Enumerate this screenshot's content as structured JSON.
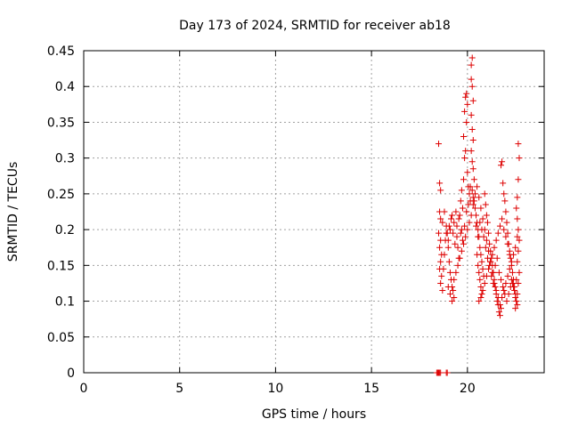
{
  "chart_data": {
    "type": "scatter",
    "title": "Day 173 of 2024, SRMTID for receiver ab18",
    "xlabel": "GPS time / hours",
    "ylabel": "SRMTID / TECUs",
    "xlim": [
      0,
      24
    ],
    "ylim": [
      0,
      0.45
    ],
    "xticks": [
      0,
      5,
      10,
      15,
      20
    ],
    "xtick_labels": [
      "0",
      "5",
      "10",
      "15",
      "20"
    ],
    "yticks": [
      0,
      0.05,
      0.1,
      0.15,
      0.2,
      0.25,
      0.3,
      0.35,
      0.4,
      0.45
    ],
    "ytick_labels": [
      "0",
      "0.05",
      "0.1",
      "0.15",
      "0.2",
      "0.25",
      "0.3",
      "0.35",
      "0.4",
      "0.45"
    ],
    "grid": true,
    "marker": "+",
    "color": "#dd0000",
    "series": [
      {
        "points": [
          [
            18.4,
            0
          ],
          [
            18.45,
            0
          ],
          [
            18.5,
            0
          ],
          [
            18.55,
            0
          ],
          [
            18.6,
            0
          ],
          [
            18.9,
            0
          ],
          [
            18.95,
            0
          ],
          [
            18.5,
            0.32
          ],
          [
            18.55,
            0.265
          ],
          [
            18.6,
            0.255
          ],
          [
            18.55,
            0.225
          ],
          [
            18.6,
            0.215
          ],
          [
            18.5,
            0.195
          ],
          [
            18.6,
            0.185
          ],
          [
            18.55,
            0.175
          ],
          [
            18.65,
            0.165
          ],
          [
            18.6,
            0.155
          ],
          [
            18.55,
            0.145
          ],
          [
            18.65,
            0.135
          ],
          [
            18.6,
            0.125
          ],
          [
            18.7,
            0.115
          ],
          [
            18.75,
            0.145
          ],
          [
            18.8,
            0.165
          ],
          [
            18.85,
            0.185
          ],
          [
            18.9,
            0.205
          ],
          [
            18.95,
            0.195
          ],
          [
            19.0,
            0.175
          ],
          [
            19.05,
            0.155
          ],
          [
            19.1,
            0.14
          ],
          [
            19.15,
            0.13
          ],
          [
            19.2,
            0.12
          ],
          [
            19.25,
            0.115
          ],
          [
            19.3,
            0.105
          ],
          [
            19.1,
            0.2
          ],
          [
            19.2,
            0.22
          ],
          [
            19.3,
            0.21
          ],
          [
            19.4,
            0.225
          ],
          [
            19.45,
            0.19
          ],
          [
            19.5,
            0.175
          ],
          [
            19.55,
            0.16
          ],
          [
            19.6,
            0.22
          ],
          [
            19.65,
            0.24
          ],
          [
            19.7,
            0.2
          ],
          [
            19.75,
            0.23
          ],
          [
            19.8,
            0.27
          ],
          [
            19.85,
            0.3
          ],
          [
            19.9,
            0.31
          ],
          [
            19.95,
            0.35
          ],
          [
            19.85,
            0.365
          ],
          [
            19.9,
            0.385
          ],
          [
            19.95,
            0.39
          ],
          [
            20.0,
            0.375
          ],
          [
            19.8,
            0.33
          ],
          [
            19.7,
            0.255
          ],
          [
            20.0,
            0.28
          ],
          [
            20.05,
            0.26
          ],
          [
            20.1,
            0.25
          ],
          [
            20.15,
            0.24
          ],
          [
            20.2,
            0.43
          ],
          [
            20.25,
            0.44
          ],
          [
            20.2,
            0.41
          ],
          [
            20.25,
            0.4
          ],
          [
            20.3,
            0.38
          ],
          [
            20.2,
            0.36
          ],
          [
            20.25,
            0.34
          ],
          [
            20.3,
            0.325
          ],
          [
            20.2,
            0.31
          ],
          [
            20.25,
            0.295
          ],
          [
            20.3,
            0.285
          ],
          [
            20.35,
            0.27
          ],
          [
            20.3,
            0.245
          ],
          [
            20.4,
            0.23
          ],
          [
            20.45,
            0.22
          ],
          [
            20.5,
            0.21
          ],
          [
            20.55,
            0.2
          ],
          [
            20.6,
            0.19
          ],
          [
            20.65,
            0.175
          ],
          [
            20.7,
            0.165
          ],
          [
            20.75,
            0.155
          ],
          [
            20.8,
            0.145
          ],
          [
            20.85,
            0.135
          ],
          [
            20.5,
            0.165
          ],
          [
            20.55,
            0.15
          ],
          [
            20.6,
            0.14
          ],
          [
            20.65,
            0.13
          ],
          [
            20.7,
            0.12
          ],
          [
            20.75,
            0.11
          ],
          [
            20.9,
            0.25
          ],
          [
            20.95,
            0.235
          ],
          [
            21.0,
            0.22
          ],
          [
            21.05,
            0.21
          ],
          [
            21.1,
            0.195
          ],
          [
            21.15,
            0.18
          ],
          [
            21.2,
            0.17
          ],
          [
            21.25,
            0.16
          ],
          [
            21.3,
            0.15
          ],
          [
            21.35,
            0.14
          ],
          [
            21.4,
            0.13
          ],
          [
            21.45,
            0.12
          ],
          [
            21.5,
            0.11
          ],
          [
            21.55,
            0.1
          ],
          [
            21.6,
            0.095
          ],
          [
            21.65,
            0.085
          ],
          [
            21.7,
            0.08
          ],
          [
            21.75,
            0.09
          ],
          [
            21.8,
            0.295
          ],
          [
            21.75,
            0.29
          ],
          [
            21.85,
            0.265
          ],
          [
            21.9,
            0.25
          ],
          [
            21.95,
            0.24
          ],
          [
            22.0,
            0.225
          ],
          [
            22.05,
            0.21
          ],
          [
            22.1,
            0.195
          ],
          [
            22.15,
            0.18
          ],
          [
            22.2,
            0.17
          ],
          [
            22.25,
            0.16
          ],
          [
            22.3,
            0.15
          ],
          [
            22.35,
            0.14
          ],
          [
            22.4,
            0.13
          ],
          [
            22.45,
            0.12
          ],
          [
            22.5,
            0.11
          ],
          [
            22.55,
            0.1
          ],
          [
            22.6,
            0.095
          ],
          [
            22.65,
            0.32
          ],
          [
            22.7,
            0.3
          ],
          [
            22.65,
            0.27
          ],
          [
            22.6,
            0.245
          ],
          [
            22.55,
            0.23
          ],
          [
            22.6,
            0.215
          ],
          [
            22.65,
            0.2
          ],
          [
            22.7,
            0.185
          ],
          [
            22.65,
            0.17
          ],
          [
            22.6,
            0.155
          ],
          [
            22.7,
            0.14
          ],
          [
            22.65,
            0.125
          ],
          [
            22.6,
            0.11
          ],
          [
            22.55,
            0.1
          ],
          [
            22.5,
            0.09
          ],
          [
            19.0,
            0.12
          ],
          [
            19.1,
            0.11
          ],
          [
            19.2,
            0.1
          ],
          [
            19.3,
            0.13
          ],
          [
            19.4,
            0.14
          ],
          [
            19.5,
            0.15
          ],
          [
            19.6,
            0.16
          ],
          [
            19.7,
            0.17
          ],
          [
            19.8,
            0.18
          ],
          [
            19.9,
            0.19
          ],
          [
            20.0,
            0.2
          ],
          [
            20.1,
            0.21
          ],
          [
            20.2,
            0.22
          ],
          [
            20.3,
            0.235
          ],
          [
            20.4,
            0.25
          ],
          [
            20.5,
            0.26
          ],
          [
            20.6,
            0.245
          ],
          [
            20.7,
            0.23
          ],
          [
            20.8,
            0.215
          ],
          [
            20.9,
            0.2
          ],
          [
            21.0,
            0.185
          ],
          [
            21.1,
            0.17
          ],
          [
            21.2,
            0.155
          ],
          [
            21.3,
            0.14
          ],
          [
            21.4,
            0.125
          ],
          [
            21.5,
            0.115
          ],
          [
            21.6,
            0.105
          ],
          [
            21.7,
            0.095
          ],
          [
            21.8,
            0.105
          ],
          [
            21.9,
            0.115
          ],
          [
            22.0,
            0.125
          ],
          [
            22.1,
            0.135
          ],
          [
            22.2,
            0.145
          ],
          [
            22.3,
            0.155
          ],
          [
            22.4,
            0.165
          ],
          [
            22.5,
            0.175
          ],
          [
            22.6,
            0.19
          ],
          [
            20.6,
            0.1
          ],
          [
            20.7,
            0.105
          ],
          [
            20.8,
            0.115
          ],
          [
            20.9,
            0.125
          ],
          [
            21.0,
            0.135
          ],
          [
            21.1,
            0.145
          ],
          [
            21.2,
            0.155
          ],
          [
            21.3,
            0.165
          ],
          [
            21.4,
            0.175
          ],
          [
            21.5,
            0.185
          ],
          [
            21.6,
            0.195
          ],
          [
            21.7,
            0.205
          ],
          [
            21.8,
            0.215
          ],
          [
            21.9,
            0.2
          ],
          [
            22.0,
            0.19
          ],
          [
            22.1,
            0.18
          ],
          [
            22.2,
            0.165
          ],
          [
            22.3,
            0.13
          ],
          [
            22.4,
            0.12
          ],
          [
            22.5,
            0.105
          ],
          [
            18.7,
            0.21
          ],
          [
            18.8,
            0.225
          ],
          [
            18.9,
            0.195
          ],
          [
            19.0,
            0.185
          ],
          [
            19.05,
            0.205
          ],
          [
            19.15,
            0.215
          ],
          [
            19.25,
            0.195
          ],
          [
            19.35,
            0.18
          ],
          [
            19.45,
            0.205
          ],
          [
            19.55,
            0.215
          ],
          [
            19.65,
            0.195
          ],
          [
            19.75,
            0.185
          ],
          [
            19.85,
            0.205
          ],
          [
            19.95,
            0.225
          ],
          [
            20.05,
            0.235
          ],
          [
            20.15,
            0.26
          ],
          [
            20.25,
            0.255
          ],
          [
            20.35,
            0.24
          ],
          [
            20.45,
            0.205
          ],
          [
            20.55,
            0.19
          ],
          [
            20.65,
            0.21
          ],
          [
            20.75,
            0.2
          ],
          [
            20.85,
            0.19
          ],
          [
            20.95,
            0.175
          ],
          [
            21.05,
            0.16
          ],
          [
            21.15,
            0.15
          ],
          [
            21.25,
            0.135
          ],
          [
            21.35,
            0.125
          ],
          [
            21.45,
            0.15
          ],
          [
            21.55,
            0.16
          ],
          [
            21.65,
            0.14
          ],
          [
            21.75,
            0.13
          ],
          [
            21.85,
            0.12
          ],
          [
            21.95,
            0.11
          ],
          [
            22.05,
            0.1
          ],
          [
            22.15,
            0.11
          ],
          [
            22.25,
            0.12
          ],
          [
            22.35,
            0.125
          ],
          [
            22.45,
            0.115
          ],
          [
            22.55,
            0.13
          ]
        ]
      }
    ]
  }
}
